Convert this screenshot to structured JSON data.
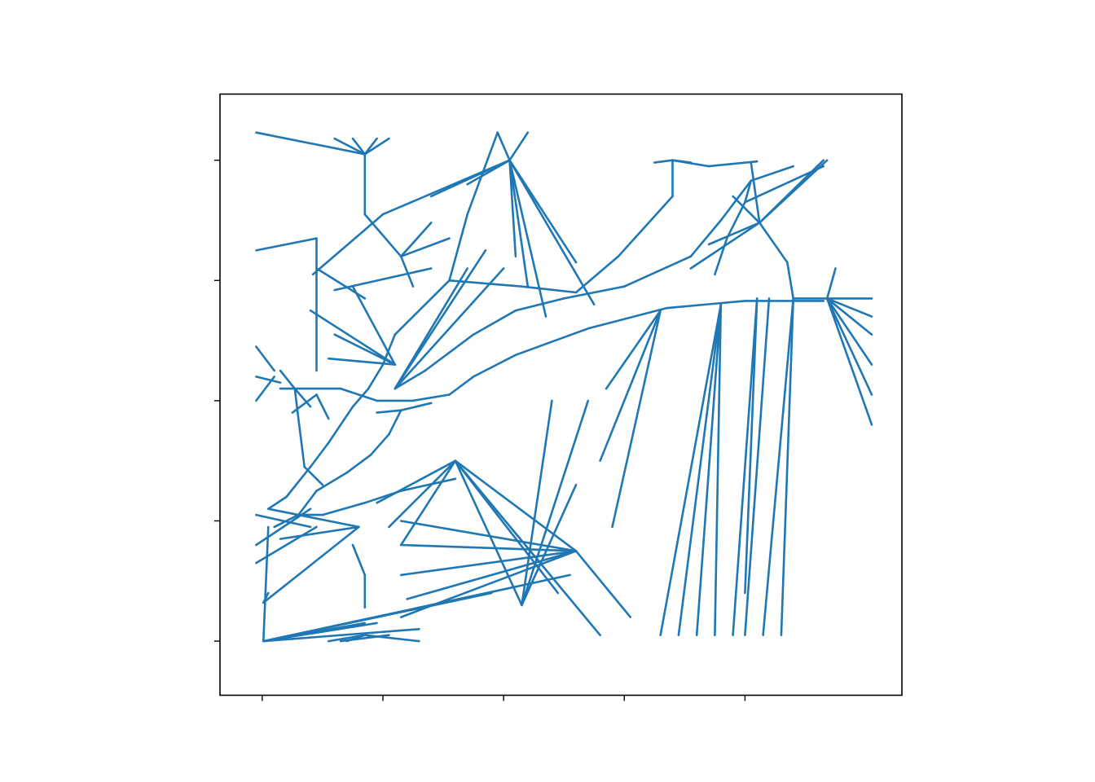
{
  "chart_data": {
    "type": "line",
    "title": "",
    "xlabel": "",
    "ylabel": "",
    "xlim": [
      -0.35,
      5.3
    ],
    "ylim": [
      -0.45,
      4.55
    ],
    "xticks": [
      0,
      1,
      2,
      3,
      4
    ],
    "yticks": [
      0,
      1,
      2,
      3,
      4
    ],
    "show_tick_labels": false,
    "grid": false,
    "legend": "none",
    "series_color": "#1f77b4",
    "sites": [
      [
        0.83,
        3.92
      ],
      [
        2.03,
        4.0
      ],
      [
        3.4,
        3.99
      ],
      [
        4.08,
        3.48
      ],
      [
        -0.05,
        3.65
      ],
      [
        0.85,
        0.28
      ],
      [
        0.01,
        0.32
      ],
      [
        0.38,
        1.0
      ],
      [
        -0.05,
        2.08
      ],
      [
        -0.05,
        2.3
      ],
      [
        0.4,
        1.9
      ],
      [
        0.61,
        1.02
      ],
      [
        1.1,
        2.3
      ],
      [
        1.6,
        1.5
      ],
      [
        2.78,
        0.05
      ],
      [
        3.9,
        0.05
      ],
      [
        5.05,
        1.8
      ],
      [
        5.05,
        2.75
      ],
      [
        4.38,
        3.0
      ],
      [
        -0.05,
        0.75
      ]
    ],
    "edges": [
      [
        -0.05,
        4.23,
        0.85,
        4.05
      ],
      [
        0.85,
        4.05,
        0.6,
        4.18
      ],
      [
        0.85,
        4.05,
        0.75,
        4.18
      ],
      [
        0.85,
        4.05,
        0.95,
        4.18
      ],
      [
        0.85,
        4.05,
        1.05,
        4.18
      ],
      [
        0.85,
        4.05,
        0.85,
        3.55
      ],
      [
        0.85,
        3.55,
        1.15,
        3.2
      ],
      [
        1.15,
        3.2,
        1.55,
        3.35
      ],
      [
        1.15,
        3.2,
        1.4,
        3.48
      ],
      [
        1.15,
        3.2,
        1.25,
        2.95
      ],
      [
        0.6,
        2.92,
        1.4,
        3.1
      ],
      [
        0.45,
        3.1,
        0.85,
        2.85
      ],
      [
        0.42,
        3.05,
        1.0,
        3.55
      ],
      [
        1.95,
        4.23,
        1.7,
        3.55
      ],
      [
        1.7,
        3.55,
        1.55,
        3.0
      ],
      [
        1.55,
        3.0,
        1.1,
        2.55
      ],
      [
        1.1,
        2.55,
        1.0,
        2.3
      ],
      [
        1.0,
        2.3,
        0.88,
        2.1
      ],
      [
        0.88,
        2.1,
        0.75,
        1.95
      ],
      [
        0.75,
        1.95,
        0.55,
        1.65
      ],
      [
        0.55,
        1.65,
        0.4,
        1.45
      ],
      [
        0.4,
        1.45,
        0.2,
        1.2
      ],
      [
        0.2,
        1.2,
        0.05,
        1.1
      ],
      [
        1.55,
        3.0,
        2.15,
        2.95
      ],
      [
        2.15,
        2.95,
        2.6,
        2.9
      ],
      [
        2.6,
        2.9,
        2.95,
        3.2
      ],
      [
        2.95,
        3.2,
        3.4,
        3.7
      ],
      [
        3.4,
        3.7,
        3.4,
        4.0
      ],
      [
        1.1,
        2.1,
        1.35,
        2.25
      ],
      [
        1.35,
        2.25,
        1.75,
        2.55
      ],
      [
        1.75,
        2.55,
        2.1,
        2.75
      ],
      [
        2.1,
        2.75,
        2.5,
        2.85
      ],
      [
        2.5,
        2.85,
        3.0,
        2.95
      ],
      [
        3.0,
        2.95,
        3.55,
        3.2
      ],
      [
        3.55,
        3.2,
        3.8,
        3.5
      ],
      [
        3.8,
        3.5,
        4.05,
        3.83
      ],
      [
        4.05,
        3.83,
        4.4,
        3.95
      ],
      [
        0.15,
        2.1,
        0.65,
        2.1
      ],
      [
        0.65,
        2.1,
        0.95,
        2.0
      ],
      [
        0.95,
        2.0,
        1.25,
        2.0
      ],
      [
        1.25,
        2.0,
        1.55,
        2.05
      ],
      [
        1.55,
        2.05,
        1.75,
        2.2
      ],
      [
        1.75,
        2.2,
        2.1,
        2.38
      ],
      [
        2.1,
        2.38,
        2.7,
        2.6
      ],
      [
        2.7,
        2.6,
        3.35,
        2.77
      ],
      [
        3.35,
        2.77,
        4.0,
        2.83
      ],
      [
        4.0,
        2.83,
        4.65,
        2.83
      ],
      [
        0.95,
        1.9,
        1.15,
        1.92
      ],
      [
        1.15,
        1.92,
        1.4,
        1.98
      ],
      [
        1.15,
        1.92,
        1.05,
        1.72
      ],
      [
        1.05,
        1.72,
        0.9,
        1.55
      ],
      [
        0.9,
        1.55,
        0.7,
        1.4
      ],
      [
        0.7,
        1.4,
        0.45,
        1.25
      ],
      [
        0.45,
        1.25,
        0.3,
        1.05
      ],
      [
        0.3,
        1.05,
        0.5,
        1.05
      ],
      [
        0.5,
        1.05,
        0.85,
        1.15
      ],
      [
        0.85,
        1.15,
        1.15,
        1.25
      ],
      [
        1.15,
        1.25,
        1.6,
        1.35
      ],
      [
        0.3,
        1.05,
        0.1,
        0.95
      ],
      [
        0.75,
        0.8,
        0.85,
        0.55
      ],
      [
        0.85,
        0.55,
        0.85,
        0.28
      ],
      [
        0.4,
        1.95,
        0.27,
        2.1
      ],
      [
        0.27,
        2.1,
        0.15,
        2.25
      ],
      [
        0.27,
        2.1,
        0.3,
        1.85
      ],
      [
        0.3,
        1.85,
        0.35,
        1.45
      ],
      [
        0.35,
        1.45,
        0.5,
        1.3
      ],
      [
        0.55,
        1.85,
        0.45,
        2.05
      ],
      [
        0.45,
        2.05,
        0.25,
        1.9
      ],
      [
        0.1,
        2.25,
        -0.05,
        2.45
      ],
      [
        0.1,
        2.2,
        -0.05,
        2.0
      ],
      [
        -0.05,
        2.2,
        0.15,
        2.15
      ],
      [
        -0.05,
        3.25,
        0.45,
        3.35
      ],
      [
        0.45,
        3.35,
        0.45,
        2.25
      ],
      [
        4.65,
        3.95,
        4.0,
        3.65
      ],
      [
        4.0,
        3.65,
        3.85,
        3.35
      ],
      [
        3.85,
        3.35,
        3.75,
        3.05
      ],
      [
        4.05,
        3.83,
        4.0,
        3.65
      ],
      [
        4.68,
        4.0,
        4.12,
        3.48
      ],
      [
        4.12,
        3.48,
        4.35,
        3.15
      ],
      [
        4.35,
        3.15,
        4.4,
        2.85
      ],
      [
        4.4,
        2.85,
        4.68,
        2.85
      ],
      [
        4.68,
        2.85,
        4.75,
        3.1
      ],
      [
        4.68,
        2.85,
        5.05,
        2.7
      ],
      [
        4.68,
        2.85,
        5.05,
        2.85
      ],
      [
        4.68,
        2.85,
        5.05,
        1.8
      ],
      [
        4.12,
        3.48,
        3.7,
        3.3
      ],
      [
        4.12,
        3.48,
        3.55,
        3.1
      ],
      [
        4.12,
        3.48,
        3.9,
        3.7
      ],
      [
        4.12,
        3.48,
        4.05,
        3.98
      ],
      [
        4.12,
        3.48,
        4.65,
        4.0
      ],
      [
        3.4,
        4.0,
        3.7,
        3.95
      ],
      [
        3.7,
        3.95,
        4.1,
        3.99
      ],
      [
        3.4,
        4.0,
        3.25,
        3.98
      ],
      [
        3.4,
        4.0,
        3.55,
        3.98
      ],
      [
        0.01,
        0.32,
        0.8,
        0.95
      ],
      [
        0.01,
        0.32,
        0.05,
        0.4
      ],
      [
        0.8,
        0.95,
        0.05,
        1.1
      ],
      [
        0.8,
        0.95,
        0.15,
        0.85
      ],
      [
        -0.05,
        1.05,
        0.4,
        0.95
      ],
      [
        -0.05,
        0.8,
        0.4,
        1.1
      ],
      [
        -0.05,
        0.65,
        0.45,
        0.95
      ],
      [
        0.01,
        0.0,
        0.05,
        0.95
      ],
      [
        0.01,
        0.0,
        0.85,
        0.15
      ],
      [
        0.01,
        0.0,
        0.95,
        0.15
      ],
      [
        0.01,
        0.0,
        1.3,
        0.1
      ],
      [
        0.01,
        0.0,
        1.9,
        0.4
      ],
      [
        0.01,
        0.0,
        2.55,
        0.55
      ],
      [
        0.65,
        0.0,
        1.05,
        0.05
      ],
      [
        0.85,
        0.05,
        1.3,
        0.0
      ],
      [
        0.85,
        0.05,
        0.55,
        0.0
      ],
      [
        0.85,
        0.05,
        0.7,
        0.0
      ],
      [
        1.6,
        1.5,
        2.6,
        0.75
      ],
      [
        1.6,
        1.5,
        2.45,
        0.4
      ],
      [
        2.6,
        0.75,
        1.15,
        1.0
      ],
      [
        2.6,
        0.75,
        1.15,
        0.8
      ],
      [
        2.6,
        0.75,
        1.15,
        0.55
      ],
      [
        2.6,
        0.75,
        1.2,
        0.35
      ],
      [
        2.6,
        0.75,
        1.15,
        0.2
      ],
      [
        3.05,
        0.2,
        2.6,
        0.75
      ],
      [
        1.6,
        1.5,
        1.15,
        0.8
      ],
      [
        1.6,
        1.5,
        1.05,
        0.95
      ],
      [
        1.6,
        1.5,
        0.95,
        1.15
      ],
      [
        1.1,
        2.1,
        1.7,
        3.1
      ],
      [
        1.1,
        2.1,
        1.85,
        3.25
      ],
      [
        1.1,
        2.1,
        2.0,
        3.1
      ],
      [
        1.1,
        2.3,
        0.75,
        2.95
      ],
      [
        1.1,
        2.3,
        0.55,
        2.35
      ],
      [
        1.1,
        2.3,
        0.6,
        2.55
      ],
      [
        1.1,
        2.3,
        0.4,
        2.75
      ],
      [
        2.05,
        4.0,
        2.2,
        2.95
      ],
      [
        2.05,
        4.0,
        2.35,
        2.7
      ],
      [
        2.05,
        4.0,
        2.1,
        3.2
      ],
      [
        2.05,
        4.0,
        2.6,
        3.15
      ],
      [
        2.05,
        4.0,
        2.75,
        2.8
      ],
      [
        2.05,
        4.0,
        1.7,
        3.8
      ],
      [
        2.05,
        4.0,
        1.4,
        3.7
      ],
      [
        2.05,
        4.0,
        1.0,
        3.55
      ],
      [
        1.95,
        4.23,
        2.05,
        4.0
      ],
      [
        2.05,
        4.0,
        2.2,
        4.23
      ],
      [
        3.3,
        2.75,
        2.85,
        2.1
      ],
      [
        3.3,
        2.75,
        2.8,
        1.5
      ],
      [
        3.3,
        2.75,
        2.9,
        0.95
      ],
      [
        3.8,
        2.8,
        3.3,
        0.05
      ],
      [
        3.8,
        2.8,
        3.45,
        0.05
      ],
      [
        3.8,
        2.8,
        3.6,
        0.05
      ],
      [
        3.8,
        2.8,
        3.75,
        0.05
      ],
      [
        4.1,
        2.85,
        4.0,
        0.4
      ],
      [
        4.1,
        2.85,
        3.9,
        0.05
      ],
      [
        4.2,
        2.85,
        4.0,
        0.05
      ],
      [
        4.4,
        2.85,
        4.3,
        0.05
      ],
      [
        4.4,
        2.85,
        4.15,
        0.05
      ],
      [
        5.05,
        2.05,
        4.68,
        2.85
      ],
      [
        5.05,
        2.3,
        4.68,
        2.85
      ],
      [
        5.05,
        2.55,
        4.68,
        2.85
      ],
      [
        2.15,
        0.3,
        2.7,
        2.0
      ],
      [
        2.15,
        0.3,
        2.6,
        1.3
      ],
      [
        2.15,
        0.3,
        2.4,
        2.0
      ],
      [
        1.6,
        1.5,
        2.15,
        0.3
      ],
      [
        1.6,
        1.5,
        2.8,
        0.05
      ]
    ]
  }
}
